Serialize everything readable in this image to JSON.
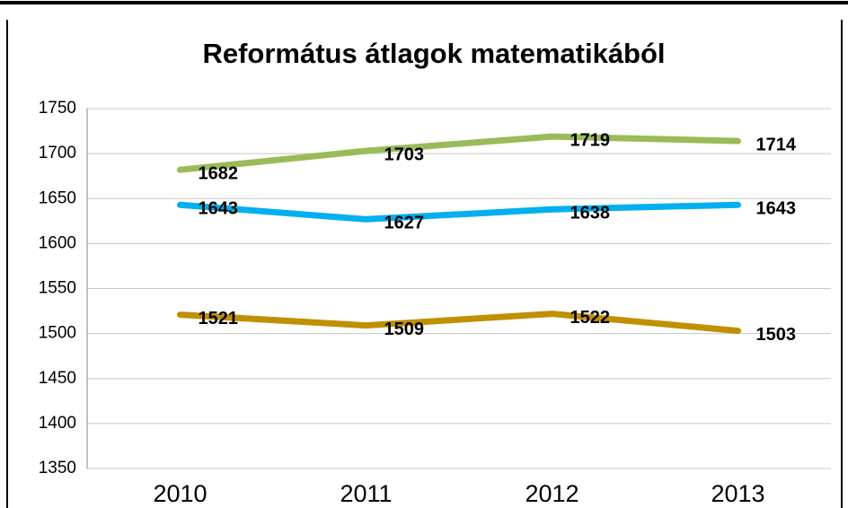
{
  "chart_data": {
    "type": "line",
    "title": "Református átlagok matematikából",
    "categories": [
      "2010",
      "2011",
      "2012",
      "2013"
    ],
    "series": [
      {
        "color": "#9bbb59",
        "values": [
          1682,
          1703,
          1719,
          1714
        ]
      },
      {
        "color": "#00b0f0",
        "values": [
          1643,
          1627,
          1638,
          1643
        ]
      },
      {
        "color": "#c09000",
        "values": [
          1521,
          1509,
          1522,
          1503
        ]
      }
    ],
    "ylim": [
      1350,
      1750
    ],
    "yticks": [
      1350,
      1400,
      1450,
      1500,
      1550,
      1600,
      1650,
      1700,
      1750
    ],
    "grid": true
  }
}
